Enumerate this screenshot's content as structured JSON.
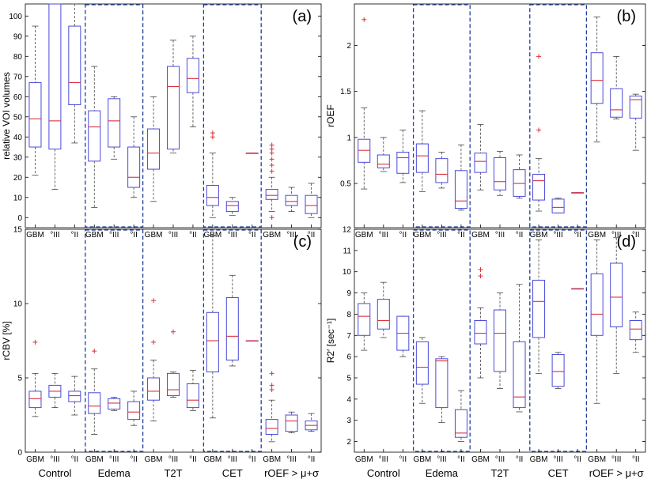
{
  "chart_data": [
    {
      "type": "box",
      "panel_label": "(a)",
      "ylabel": "relative VOI volumes",
      "ylim": [
        -5,
        106
      ],
      "yticks": [
        "0",
        "10",
        "20",
        "30",
        "40",
        "50",
        "60",
        "70",
        "80",
        "90",
        "100"
      ],
      "categories": [
        "GBM",
        "°III",
        "°II"
      ],
      "groups": [
        "Control",
        "Edema",
        "T2T",
        "CET",
        "rOEF > μ+σ"
      ],
      "highlighted_groups": [
        "Edema",
        "CET"
      ],
      "boxes": [
        {
          "group": "Control",
          "category": "GBM",
          "whislo": 21,
          "q1": 35,
          "med": 49,
          "q3": 67,
          "whishi": 95,
          "fliers": []
        },
        {
          "group": "Control",
          "category": "°III",
          "whislo": 14,
          "q1": 34,
          "med": 48,
          "q3": 106,
          "whishi": 106,
          "fliers": []
        },
        {
          "group": "Control",
          "category": "°II",
          "whislo": 37,
          "q1": 56,
          "med": 67,
          "q3": 95,
          "whishi": 106,
          "fliers": []
        },
        {
          "group": "Edema",
          "category": "GBM",
          "whislo": 5,
          "q1": 28,
          "med": 45,
          "q3": 53,
          "whishi": 75,
          "fliers": []
        },
        {
          "group": "Edema",
          "category": "°III",
          "whislo": 29,
          "q1": 35,
          "med": 48,
          "q3": 59,
          "whishi": 60,
          "fliers": []
        },
        {
          "group": "Edema",
          "category": "°II",
          "whislo": 10,
          "q1": 15,
          "med": 20,
          "q3": 35,
          "whishi": 50,
          "fliers": []
        },
        {
          "group": "T2T",
          "category": "GBM",
          "whislo": 8,
          "q1": 24,
          "med": 32,
          "q3": 44,
          "whishi": 60,
          "fliers": []
        },
        {
          "group": "T2T",
          "category": "°III",
          "whislo": 32,
          "q1": 34,
          "med": 65,
          "q3": 75,
          "whishi": 88,
          "fliers": []
        },
        {
          "group": "T2T",
          "category": "°II",
          "whislo": 45,
          "q1": 62,
          "med": 69,
          "q3": 79,
          "whishi": 90,
          "fliers": []
        },
        {
          "group": "CET",
          "category": "GBM",
          "whislo": 0,
          "q1": 6,
          "med": 10,
          "q3": 16,
          "whishi": 32,
          "fliers": [
            40,
            42
          ]
        },
        {
          "group": "CET",
          "category": "°III",
          "whislo": 1,
          "q1": 3,
          "med": 6,
          "q3": 8,
          "whishi": 10,
          "fliers": []
        },
        {
          "group": "CET",
          "category": "°II",
          "whislo": 32,
          "q1": 32,
          "med": 32,
          "q3": 32,
          "whishi": 32,
          "fliers": []
        },
        {
          "group": "rOEF > μ+σ",
          "category": "GBM",
          "whislo": 3,
          "q1": 9,
          "med": 11,
          "q3": 14,
          "whishi": 20,
          "fliers": [
            0,
            23,
            26,
            29,
            32,
            34,
            36
          ]
        },
        {
          "group": "rOEF > μ+σ",
          "category": "°III",
          "whislo": 3,
          "q1": 6,
          "med": 8,
          "q3": 11,
          "whishi": 15,
          "fliers": []
        },
        {
          "group": "rOEF > μ+σ",
          "category": "°II",
          "whislo": 0,
          "q1": 2,
          "med": 6,
          "q3": 11,
          "whishi": 17,
          "fliers": []
        }
      ]
    },
    {
      "type": "box",
      "panel_label": "(b)",
      "ylabel": "rOEF",
      "ylim": [
        0.02,
        2.45
      ],
      "yticks": [
        "0.5",
        "1",
        "1.5",
        "2"
      ],
      "categories": [
        "GBM",
        "°III",
        "°II"
      ],
      "groups": [
        "Control",
        "Edema",
        "T2T",
        "CET",
        "rOEF > μ+σ"
      ],
      "highlighted_groups": [
        "Edema",
        "CET"
      ],
      "boxes": [
        {
          "group": "Control",
          "category": "GBM",
          "whislo": 0.44,
          "q1": 0.73,
          "med": 0.86,
          "q3": 0.98,
          "whishi": 1.32,
          "fliers": [
            2.28
          ]
        },
        {
          "group": "Control",
          "category": "°III",
          "whislo": 0.63,
          "q1": 0.67,
          "med": 0.71,
          "q3": 0.81,
          "whishi": 1.0,
          "fliers": []
        },
        {
          "group": "Control",
          "category": "°II",
          "whislo": 0.51,
          "q1": 0.61,
          "med": 0.78,
          "q3": 0.84,
          "whishi": 1.08,
          "fliers": []
        },
        {
          "group": "Edema",
          "category": "GBM",
          "whislo": 0.41,
          "q1": 0.62,
          "med": 0.8,
          "q3": 0.93,
          "whishi": 1.29,
          "fliers": []
        },
        {
          "group": "Edema",
          "category": "°III",
          "whislo": 0.45,
          "q1": 0.51,
          "med": 0.6,
          "q3": 0.77,
          "whishi": 0.84,
          "fliers": []
        },
        {
          "group": "Edema",
          "category": "°II",
          "whislo": 0.21,
          "q1": 0.23,
          "med": 0.31,
          "q3": 0.64,
          "whishi": 0.92,
          "fliers": []
        },
        {
          "group": "T2T",
          "category": "GBM",
          "whislo": 0.43,
          "q1": 0.62,
          "med": 0.74,
          "q3": 0.83,
          "whishi": 1.14,
          "fliers": []
        },
        {
          "group": "T2T",
          "category": "°III",
          "whislo": 0.37,
          "q1": 0.43,
          "med": 0.52,
          "q3": 0.78,
          "whishi": 0.85,
          "fliers": []
        },
        {
          "group": "T2T",
          "category": "°II",
          "whislo": 0.34,
          "q1": 0.36,
          "med": 0.5,
          "q3": 0.65,
          "whishi": 0.81,
          "fliers": []
        },
        {
          "group": "CET",
          "category": "GBM",
          "whislo": 0.2,
          "q1": 0.32,
          "med": 0.53,
          "q3": 0.6,
          "whishi": 0.77,
          "fliers": [
            1.08,
            1.88
          ]
        },
        {
          "group": "CET",
          "category": "°III",
          "whislo": 0.18,
          "q1": 0.18,
          "med": 0.24,
          "q3": 0.33,
          "whishi": 0.34,
          "fliers": []
        },
        {
          "group": "CET",
          "category": "°II",
          "whislo": 0.4,
          "q1": 0.4,
          "med": 0.4,
          "q3": 0.4,
          "whishi": 0.4,
          "fliers": []
        },
        {
          "group": "rOEF > μ+σ",
          "category": "GBM",
          "whislo": 0.95,
          "q1": 1.37,
          "med": 1.62,
          "q3": 1.92,
          "whishi": 2.31,
          "fliers": []
        },
        {
          "group": "rOEF > μ+σ",
          "category": "°III",
          "whislo": 1.2,
          "q1": 1.22,
          "med": 1.3,
          "q3": 1.53,
          "whishi": 1.88,
          "fliers": []
        },
        {
          "group": "rOEF > μ+σ",
          "category": "°II",
          "whislo": 0.86,
          "q1": 1.21,
          "med": 1.41,
          "q3": 1.45,
          "whishi": 1.47,
          "fliers": []
        }
      ]
    },
    {
      "type": "box",
      "panel_label": "(c)",
      "ylabel": "rCBV [%]",
      "ylim": [
        0,
        15
      ],
      "yticks": [
        "0",
        "5",
        "10",
        "15"
      ],
      "categories": [
        "GBM",
        "°III",
        "°II"
      ],
      "groups": [
        "Control",
        "Edema",
        "T2T",
        "CET",
        "rOEF > μ+σ"
      ],
      "highlighted_groups": [
        "Edema",
        "CET"
      ],
      "boxes": [
        {
          "group": "Control",
          "category": "GBM",
          "whislo": 2.4,
          "q1": 3.0,
          "med": 3.6,
          "q3": 4.1,
          "whishi": 5.3,
          "fliers": [
            7.4
          ]
        },
        {
          "group": "Control",
          "category": "°III",
          "whislo": 3.0,
          "q1": 3.7,
          "med": 4.1,
          "q3": 4.5,
          "whishi": 5.3,
          "fliers": []
        },
        {
          "group": "Control",
          "category": "°II",
          "whislo": 2.5,
          "q1": 3.4,
          "med": 3.8,
          "q3": 4.1,
          "whishi": 5.1,
          "fliers": []
        },
        {
          "group": "Edema",
          "category": "GBM",
          "whislo": 1.2,
          "q1": 2.6,
          "med": 3.1,
          "q3": 4.0,
          "whishi": 5.6,
          "fliers": [
            6.8
          ]
        },
        {
          "group": "Edema",
          "category": "°III",
          "whislo": 2.8,
          "q1": 2.9,
          "med": 3.3,
          "q3": 3.6,
          "whishi": 3.7,
          "fliers": []
        },
        {
          "group": "Edema",
          "category": "°II",
          "whislo": 1.8,
          "q1": 2.2,
          "med": 2.7,
          "q3": 3.4,
          "whishi": 4.1,
          "fliers": []
        },
        {
          "group": "T2T",
          "category": "GBM",
          "whislo": 2.1,
          "q1": 3.5,
          "med": 4.1,
          "q3": 5.0,
          "whishi": 6.2,
          "fliers": [
            7.4,
            10.2
          ]
        },
        {
          "group": "T2T",
          "category": "°III",
          "whislo": 3.7,
          "q1": 3.8,
          "med": 4.2,
          "q3": 5.3,
          "whishi": 5.4,
          "fliers": [
            8.1
          ]
        },
        {
          "group": "T2T",
          "category": "°II",
          "whislo": 2.8,
          "q1": 3.0,
          "med": 3.5,
          "q3": 4.6,
          "whishi": 5.5,
          "fliers": []
        },
        {
          "group": "CET",
          "category": "GBM",
          "whislo": 2.3,
          "q1": 5.4,
          "med": 7.5,
          "q3": 9.4,
          "whishi": 14.6,
          "fliers": []
        },
        {
          "group": "CET",
          "category": "°III",
          "whislo": 5.8,
          "q1": 6.2,
          "med": 7.8,
          "q3": 10.4,
          "whishi": 11.9,
          "fliers": []
        },
        {
          "group": "CET",
          "category": "°II",
          "whislo": 7.5,
          "q1": 7.5,
          "med": 7.5,
          "q3": 7.5,
          "whishi": 7.5,
          "fliers": []
        },
        {
          "group": "rOEF > μ+σ",
          "category": "GBM",
          "whislo": 0.7,
          "q1": 1.2,
          "med": 1.6,
          "q3": 2.2,
          "whishi": 3.5,
          "fliers": [
            4.2,
            4.5,
            5.3
          ]
        },
        {
          "group": "rOEF > μ+σ",
          "category": "°III",
          "whislo": 1.3,
          "q1": 1.4,
          "med": 2.1,
          "q3": 2.5,
          "whishi": 2.7,
          "fliers": []
        },
        {
          "group": "rOEF > μ+σ",
          "category": "°II",
          "whislo": 1.4,
          "q1": 1.5,
          "med": 1.8,
          "q3": 2.1,
          "whishi": 2.6,
          "fliers": []
        }
      ]
    },
    {
      "type": "box",
      "panel_label": "(d)",
      "ylabel": "R2′ [sec⁻¹]",
      "ylim": [
        1.5,
        12
      ],
      "yticks": [
        "2",
        "3",
        "4",
        "5",
        "6",
        "7",
        "8",
        "9",
        "10",
        "11",
        "12"
      ],
      "categories": [
        "GBM",
        "°III",
        "°II"
      ],
      "groups": [
        "Control",
        "Edema",
        "T2T",
        "CET",
        "rOEF > μ+σ"
      ],
      "highlighted_groups": [
        "Edema",
        "CET"
      ],
      "boxes": [
        {
          "group": "Control",
          "category": "GBM",
          "whislo": 6.3,
          "q1": 7.0,
          "med": 7.9,
          "q3": 8.5,
          "whishi": 9.0,
          "fliers": []
        },
        {
          "group": "Control",
          "category": "°III",
          "whislo": 6.9,
          "q1": 7.3,
          "med": 7.7,
          "q3": 8.7,
          "whishi": 9.5,
          "fliers": []
        },
        {
          "group": "Control",
          "category": "°II",
          "whislo": 6.0,
          "q1": 6.3,
          "med": 7.1,
          "q3": 7.9,
          "whishi": 7.9,
          "fliers": []
        },
        {
          "group": "Edema",
          "category": "GBM",
          "whislo": 3.8,
          "q1": 4.7,
          "med": 5.5,
          "q3": 6.7,
          "whishi": 6.9,
          "fliers": []
        },
        {
          "group": "Edema",
          "category": "°III",
          "whislo": 2.9,
          "q1": 3.6,
          "med": 5.8,
          "q3": 5.9,
          "whishi": 6.0,
          "fliers": []
        },
        {
          "group": "Edema",
          "category": "°II",
          "whislo": 2.0,
          "q1": 2.2,
          "med": 2.4,
          "q3": 3.5,
          "whishi": 4.4,
          "fliers": []
        },
        {
          "group": "T2T",
          "category": "GBM",
          "whislo": 5.0,
          "q1": 6.6,
          "med": 7.1,
          "q3": 7.7,
          "whishi": 8.3,
          "fliers": [
            9.8,
            10.1
          ]
        },
        {
          "group": "T2T",
          "category": "°III",
          "whislo": 4.5,
          "q1": 5.3,
          "med": 7.1,
          "q3": 8.2,
          "whishi": 9.0,
          "fliers": []
        },
        {
          "group": "T2T",
          "category": "°II",
          "whislo": 3.4,
          "q1": 3.6,
          "med": 4.1,
          "q3": 6.7,
          "whishi": 9.4,
          "fliers": []
        },
        {
          "group": "CET",
          "category": "GBM",
          "whislo": 5.2,
          "q1": 6.9,
          "med": 8.6,
          "q3": 9.6,
          "whishi": 11.5,
          "fliers": []
        },
        {
          "group": "CET",
          "category": "°III",
          "whislo": 4.5,
          "q1": 4.6,
          "med": 5.3,
          "q3": 6.1,
          "whishi": 6.2,
          "fliers": []
        },
        {
          "group": "CET",
          "category": "°II",
          "whislo": 9.2,
          "q1": 9.2,
          "med": 9.2,
          "q3": 9.2,
          "whishi": 9.2,
          "fliers": []
        },
        {
          "group": "rOEF > μ+σ",
          "category": "GBM",
          "whislo": 3.8,
          "q1": 7.0,
          "med": 8.0,
          "q3": 9.9,
          "whishi": 11.5,
          "fliers": []
        },
        {
          "group": "rOEF > μ+σ",
          "category": "°III",
          "whislo": 5.2,
          "q1": 7.4,
          "med": 8.8,
          "q3": 10.4,
          "whishi": 11.6,
          "fliers": []
        },
        {
          "group": "rOEF > μ+σ",
          "category": "°II",
          "whislo": 6.2,
          "q1": 6.8,
          "med": 7.3,
          "q3": 7.7,
          "whishi": 8.1,
          "fliers": []
        }
      ]
    }
  ],
  "colors": {
    "box": "#4a4ad8",
    "median": "#d8323c",
    "whisker": "#444444",
    "highlight": "#1f3d99",
    "flier": "#d8323c"
  }
}
